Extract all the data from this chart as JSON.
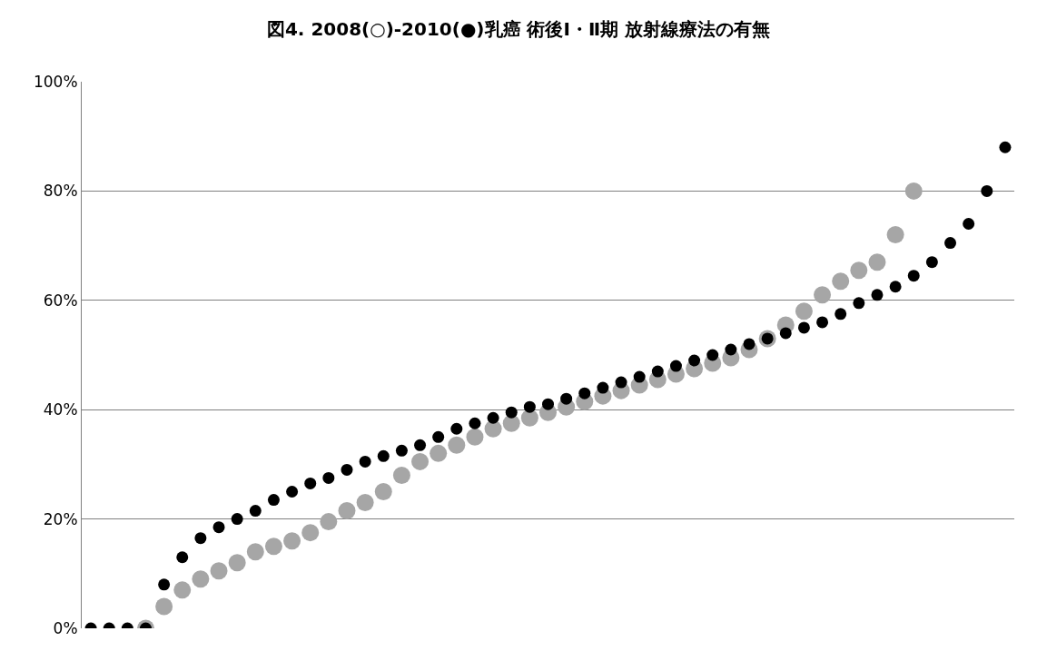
{
  "chart_data": {
    "type": "scatter",
    "title": "図4. 2008(○)-2010(●)乳癌 術後Ⅰ・Ⅱ期 放射線療法の有無",
    "categories": [
      null,
      null,
      null,
      null,
      null,
      null,
      null,
      null,
      null,
      null,
      null,
      null,
      null,
      null,
      null,
      null,
      null,
      null,
      null,
      null,
      null,
      null,
      null,
      null,
      null,
      null,
      null,
      null,
      null,
      null,
      null,
      null,
      null,
      null,
      null,
      null,
      null,
      null,
      null,
      null,
      null,
      null,
      null,
      null,
      null,
      null,
      null,
      null,
      null,
      null,
      null
    ],
    "series": [
      {
        "color": "#a6a6a6",
        "values": [
          null,
          null,
          null,
          0,
          4,
          7,
          9,
          10.5,
          12,
          14,
          15,
          16,
          17.5,
          19.5,
          21.5,
          23,
          25,
          28,
          30.5,
          32,
          33.5,
          35,
          36.5,
          37.5,
          38.5,
          39.5,
          40.5,
          41.5,
          42.5,
          43.5,
          44.5,
          45.5,
          46.5,
          47.5,
          48.5,
          49.5,
          51,
          53,
          55.5,
          58,
          61,
          63.5,
          65.5,
          67,
          72,
          80,
          null,
          null,
          null,
          null,
          null
        ]
      },
      {
        "color": "#000000",
        "values": [
          0,
          0,
          0,
          0,
          8,
          13,
          16.5,
          18.5,
          20,
          21.5,
          23.5,
          25,
          26.5,
          27.5,
          29,
          30.5,
          31.5,
          32.5,
          33.5,
          35,
          36.5,
          37.5,
          38.5,
          39.5,
          40.5,
          41,
          42,
          43,
          44,
          45,
          46,
          47,
          48,
          49,
          50,
          51,
          52,
          53,
          54,
          55,
          56,
          57.5,
          59.5,
          61,
          62.5,
          64.5,
          67,
          70.5,
          74,
          80,
          88
        ]
      }
    ],
    "ylim": [
      0,
      100
    ],
    "yticks": [
      {
        "value": 0,
        "label": "0%"
      },
      {
        "value": 20,
        "label": "20%"
      },
      {
        "value": 40,
        "label": "40%"
      },
      {
        "value": 60,
        "label": "60%"
      },
      {
        "value": 80,
        "label": "80%"
      },
      {
        "value": 100,
        "label": "100%"
      }
    ],
    "grid": "y",
    "marker": "circle",
    "tick_labels": "y"
  }
}
